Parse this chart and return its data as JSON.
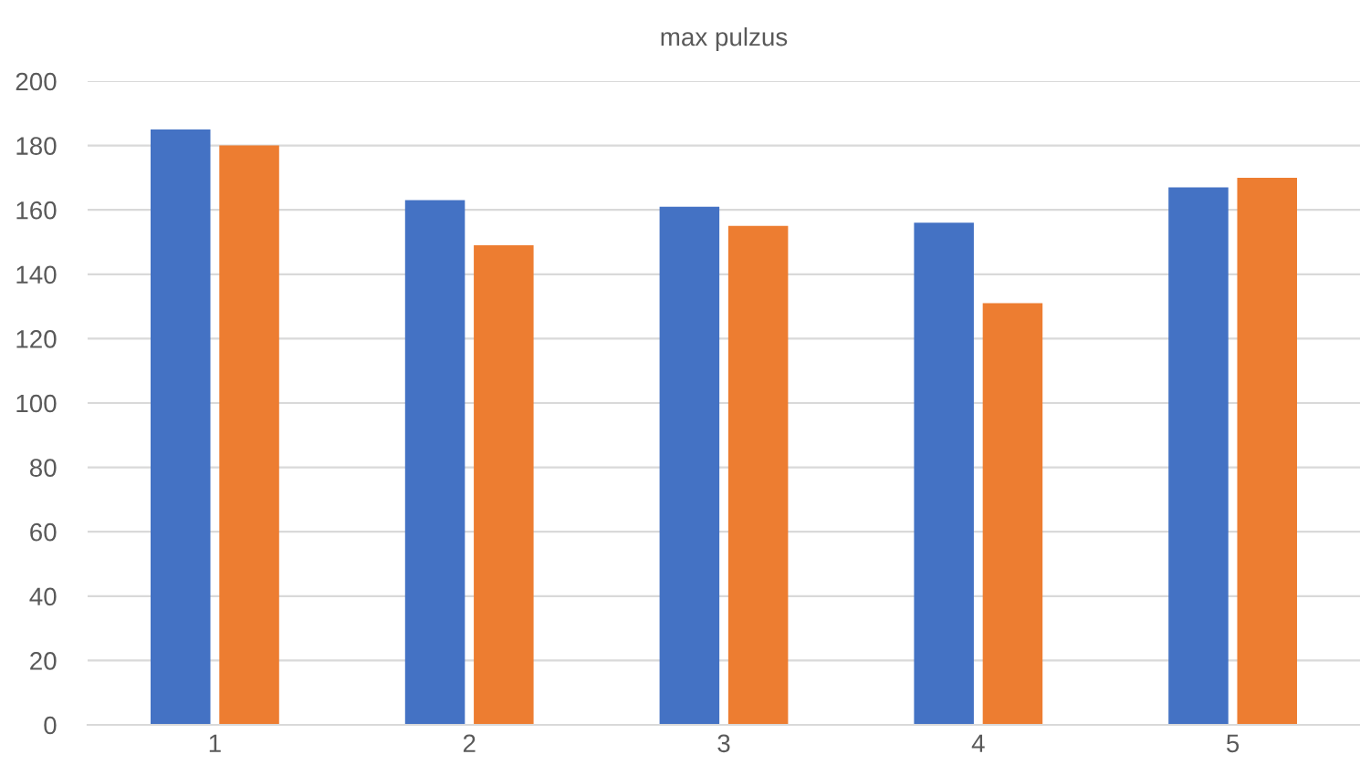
{
  "chart_data": {
    "type": "bar",
    "title": "max pulzus",
    "categories": [
      "1",
      "2",
      "3",
      "4",
      "5"
    ],
    "series": [
      {
        "color": "#4472c4",
        "values": [
          185,
          163,
          161,
          156,
          167
        ]
      },
      {
        "color": "#ed7d31",
        "values": [
          180,
          149,
          155,
          131,
          170
        ]
      }
    ],
    "ylim": [
      0,
      200
    ],
    "yticks": [
      0,
      20,
      40,
      60,
      80,
      100,
      120,
      140,
      160,
      180,
      200
    ],
    "grid": "y",
    "legend": false
  }
}
